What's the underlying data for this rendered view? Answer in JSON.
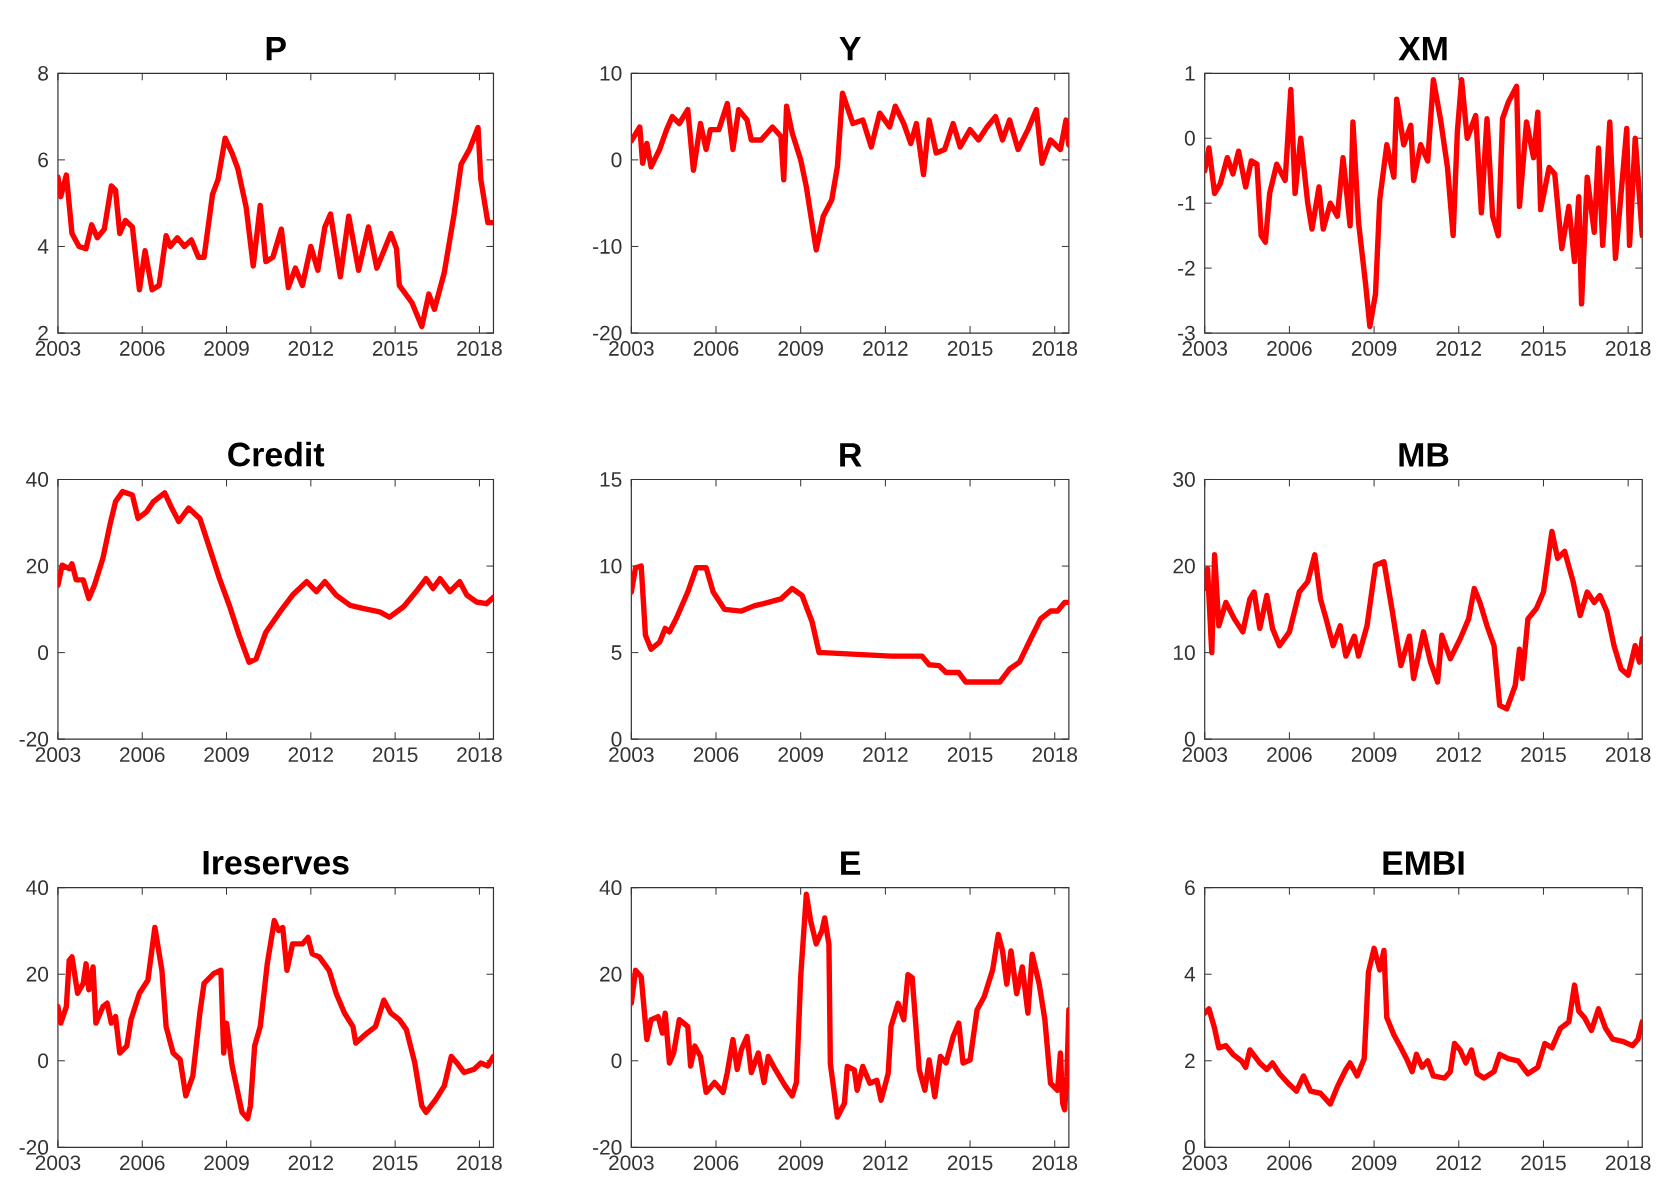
{
  "chart_data": [
    {
      "type": "line",
      "title": "P",
      "color": "#ff0000",
      "xlim": [
        2003,
        2018.5
      ],
      "xticks": [
        2003,
        2006,
        2009,
        2012,
        2015,
        2018
      ],
      "ylim": [
        2,
        8
      ],
      "yticks": [
        2,
        4,
        6,
        8
      ],
      "x": [
        2003.0,
        2003.1,
        2003.3,
        2003.5,
        2003.75,
        2004.0,
        2004.2,
        2004.4,
        2004.65,
        2004.9,
        2005.05,
        2005.2,
        2005.4,
        2005.65,
        2005.9,
        2006.1,
        2006.35,
        2006.6,
        2006.85,
        2007.0,
        2007.25,
        2007.5,
        2007.75,
        2008.0,
        2008.2,
        2008.5,
        2008.7,
        2008.95,
        2009.2,
        2009.4,
        2009.7,
        2009.95,
        2010.2,
        2010.4,
        2010.65,
        2010.95,
        2011.2,
        2011.45,
        2011.7,
        2012.0,
        2012.25,
        2012.5,
        2012.7,
        2013.05,
        2013.35,
        2013.7,
        2014.05,
        2014.35,
        2014.85,
        2015.05,
        2015.15,
        2015.6,
        2015.95,
        2016.2,
        2016.4,
        2016.75,
        2017.1,
        2017.35,
        2017.65,
        2017.95,
        2018.05,
        2018.3,
        2018.5
      ],
      "values": [
        5.6,
        5.15,
        5.65,
        4.3,
        4.0,
        3.95,
        4.5,
        4.2,
        4.4,
        5.4,
        5.3,
        4.3,
        4.6,
        4.45,
        3.0,
        3.9,
        3.0,
        3.1,
        4.25,
        4.0,
        4.2,
        4.0,
        4.15,
        3.75,
        3.75,
        5.2,
        5.55,
        6.5,
        6.15,
        5.8,
        4.9,
        3.55,
        4.95,
        3.65,
        3.75,
        4.4,
        3.05,
        3.5,
        3.1,
        4.0,
        3.45,
        4.45,
        4.75,
        3.3,
        4.7,
        3.45,
        4.45,
        3.5,
        4.3,
        3.95,
        3.1,
        2.7,
        2.15,
        2.9,
        2.55,
        3.4,
        4.75,
        5.9,
        6.25,
        6.75,
        5.55,
        4.55,
        4.55
      ]
    },
    {
      "type": "line",
      "title": "Y",
      "color": "#ff0000",
      "xlim": [
        2003,
        2018.5
      ],
      "xticks": [
        2003,
        2006,
        2009,
        2012,
        2015,
        2018
      ],
      "ylim": [
        -20,
        10
      ],
      "yticks": [
        -20,
        -10,
        0,
        10
      ],
      "x": [
        2003.0,
        2003.3,
        2003.4,
        2003.55,
        2003.7,
        2004.0,
        2004.25,
        2004.45,
        2004.7,
        2005.0,
        2005.2,
        2005.45,
        2005.65,
        2005.8,
        2006.1,
        2006.4,
        2006.6,
        2006.8,
        2007.1,
        2007.25,
        2007.6,
        2008.0,
        2008.3,
        2008.4,
        2008.5,
        2008.7,
        2009.0,
        2009.2,
        2009.4,
        2009.55,
        2009.8,
        2010.1,
        2010.3,
        2010.48,
        2010.85,
        2011.2,
        2011.5,
        2011.8,
        2012.15,
        2012.35,
        2012.65,
        2012.9,
        2013.1,
        2013.35,
        2013.55,
        2013.8,
        2014.1,
        2014.4,
        2014.65,
        2015.0,
        2015.3,
        2015.6,
        2015.9,
        2016.15,
        2016.4,
        2016.7,
        2017.05,
        2017.35,
        2017.55,
        2017.85,
        2018.2,
        2018.4,
        2018.5
      ],
      "values": [
        2.2,
        3.8,
        -0.4,
        1.9,
        -0.8,
        1.2,
        3.5,
        5.0,
        4.2,
        5.8,
        -1.2,
        4.2,
        1.2,
        3.5,
        3.5,
        6.5,
        1.2,
        5.8,
        4.6,
        2.3,
        2.3,
        3.8,
        2.7,
        -2.3,
        6.2,
        3.1,
        0,
        -3.1,
        -7.3,
        -10.4,
        -6.5,
        -4.6,
        -0.8,
        7.7,
        4.2,
        4.6,
        1.5,
        5.4,
        3.8,
        6.2,
        4.2,
        1.9,
        4.2,
        -1.7,
        4.6,
        0.8,
        1.2,
        4.2,
        1.5,
        3.5,
        2.3,
        3.8,
        5.0,
        2.3,
        4.6,
        1.2,
        3.5,
        5.8,
        -0.4,
        2.3,
        1.2,
        4.6,
        1.7
      ]
    },
    {
      "type": "line",
      "title": "XM",
      "color": "#ff0000",
      "xlim": [
        2003,
        2018.5
      ],
      "xticks": [
        2003,
        2006,
        2009,
        2012,
        2015,
        2018
      ],
      "ylim": [
        -3,
        1
      ],
      "yticks": [
        -3,
        -2,
        -1,
        0,
        1
      ],
      "x": [
        2003.0,
        2003.15,
        2003.35,
        2003.55,
        2003.8,
        2004.0,
        2004.2,
        2004.45,
        2004.65,
        2004.85,
        2005.0,
        2005.15,
        2005.3,
        2005.55,
        2005.85,
        2006.05,
        2006.2,
        2006.4,
        2006.65,
        2006.8,
        2007.05,
        2007.2,
        2007.45,
        2007.7,
        2007.9,
        2008.15,
        2008.25,
        2008.45,
        2008.7,
        2008.85,
        2009.05,
        2009.2,
        2009.45,
        2009.7,
        2009.8,
        2010.05,
        2010.3,
        2010.4,
        2010.65,
        2010.9,
        2011.1,
        2011.35,
        2011.6,
        2011.8,
        2011.95,
        2012.1,
        2012.3,
        2012.6,
        2012.8,
        2013.0,
        2013.2,
        2013.4,
        2013.55,
        2013.75,
        2014.05,
        2014.15,
        2014.4,
        2014.65,
        2014.8,
        2014.9,
        2015.2,
        2015.4,
        2015.65,
        2015.9,
        2016.1,
        2016.25,
        2016.35,
        2016.55,
        2016.8,
        2016.95,
        2017.1,
        2017.35,
        2017.55,
        2017.8,
        2017.95,
        2018.05,
        2018.25,
        2018.5
      ],
      "values": [
        -0.5,
        -0.15,
        -0.85,
        -0.7,
        -0.3,
        -0.55,
        -0.2,
        -0.75,
        -0.35,
        -0.4,
        -1.5,
        -1.6,
        -0.85,
        -0.4,
        -0.65,
        0.75,
        -0.85,
        0,
        -1.0,
        -1.4,
        -0.75,
        -1.4,
        -1.0,
        -1.2,
        -0.3,
        -1.35,
        0.25,
        -1.3,
        -2.25,
        -2.9,
        -2.4,
        -0.95,
        -0.1,
        -0.6,
        0.6,
        -0.1,
        0.2,
        -0.65,
        -0.1,
        -0.35,
        0.9,
        0.3,
        -0.45,
        -1.5,
        0.1,
        0.9,
        0,
        0.35,
        -1.15,
        0.3,
        -1.2,
        -1.5,
        0.3,
        0.55,
        0.8,
        -1.05,
        0.25,
        -0.3,
        0.4,
        -1.1,
        -0.45,
        -0.55,
        -1.7,
        -1.05,
        -1.9,
        -0.9,
        -2.55,
        -0.6,
        -1.45,
        -0.15,
        -1.65,
        0.25,
        -1.85,
        -0.6,
        0.15,
        -1.65,
        0,
        -1.5
      ]
    },
    {
      "type": "line",
      "title": "Credit",
      "color": "#ff0000",
      "xlim": [
        2003,
        2018.5
      ],
      "xticks": [
        2003,
        2006,
        2009,
        2012,
        2015,
        2018
      ],
      "ylim": [
        -20,
        40
      ],
      "yticks": [
        -20,
        0,
        20,
        40
      ],
      "x": [
        2003.0,
        2003.15,
        2003.4,
        2003.5,
        2003.65,
        2003.9,
        2004.1,
        2004.3,
        2004.6,
        2004.85,
        2005.05,
        2005.3,
        2005.65,
        2005.85,
        2006.15,
        2006.4,
        2006.8,
        2007.05,
        2007.3,
        2007.65,
        2008.05,
        2008.4,
        2008.75,
        2009.1,
        2009.45,
        2009.8,
        2010.05,
        2010.4,
        2010.9,
        2011.35,
        2011.85,
        2012.2,
        2012.5,
        2012.9,
        2013.4,
        2013.85,
        2014.45,
        2014.8,
        2015.3,
        2015.75,
        2016.1,
        2016.35,
        2016.6,
        2016.95,
        2017.3,
        2017.55,
        2017.9,
        2018.25,
        2018.5
      ],
      "values": [
        15.6,
        20.2,
        19.4,
        20.5,
        16.8,
        16.8,
        12.5,
        15.6,
        21.8,
        29.5,
        34.9,
        37.2,
        36.4,
        31,
        32.5,
        34.9,
        36.9,
        33.4,
        30.3,
        33.4,
        31,
        24.1,
        17.1,
        10.9,
        4,
        -2.2,
        -1.5,
        4.7,
        9.4,
        13.3,
        16.4,
        14.1,
        16.4,
        13.3,
        10.9,
        10.2,
        9.4,
        8.2,
        10.6,
        14.1,
        17.1,
        14.8,
        17.1,
        14.1,
        16.4,
        13.3,
        11.7,
        11.3,
        12.8
      ]
    },
    {
      "type": "line",
      "title": "R",
      "color": "#ff0000",
      "xlim": [
        2003,
        2018.5
      ],
      "xticks": [
        2003,
        2006,
        2009,
        2012,
        2015,
        2018
      ],
      "ylim": [
        0,
        15
      ],
      "yticks": [
        0,
        5,
        10,
        15
      ],
      "x": [
        2003.0,
        2003.15,
        2003.35,
        2003.5,
        2003.7,
        2004.0,
        2004.2,
        2004.35,
        2004.6,
        2005.0,
        2005.3,
        2005.65,
        2005.9,
        2006.3,
        2006.9,
        2007.35,
        2007.85,
        2008.3,
        2008.7,
        2009.05,
        2009.4,
        2009.65,
        2009.8,
        2012.2,
        2013.3,
        2013.55,
        2013.9,
        2014.15,
        2014.6,
        2014.85,
        2016.05,
        2016.4,
        2016.75,
        2017.15,
        2017.5,
        2017.85,
        2018.1,
        2018.35,
        2018.5
      ],
      "values": [
        8.5,
        9.9,
        10.0,
        6.0,
        5.2,
        5.6,
        6.4,
        6.2,
        7.0,
        8.5,
        9.9,
        9.9,
        8.5,
        7.5,
        7.4,
        7.7,
        7.9,
        8.1,
        8.7,
        8.3,
        6.8,
        5.0,
        5.0,
        4.8,
        4.8,
        4.3,
        4.25,
        3.85,
        3.85,
        3.3,
        3.3,
        4.05,
        4.45,
        5.8,
        6.95,
        7.4,
        7.4,
        7.9,
        7.9
      ]
    },
    {
      "type": "line",
      "title": "MB",
      "color": "#ff0000",
      "xlim": [
        2003,
        2018.5
      ],
      "xticks": [
        2003,
        2006,
        2009,
        2012,
        2015,
        2018
      ],
      "ylim": [
        0,
        30
      ],
      "yticks": [
        0,
        10,
        20,
        30
      ],
      "x": [
        2003.0,
        2003.1,
        2003.25,
        2003.35,
        2003.5,
        2003.75,
        2004.05,
        2004.35,
        2004.6,
        2004.75,
        2004.95,
        2005.2,
        2005.4,
        2005.65,
        2006.0,
        2006.35,
        2006.65,
        2006.9,
        2007.1,
        2007.3,
        2007.55,
        2007.8,
        2008.0,
        2008.3,
        2008.45,
        2008.75,
        2009.05,
        2009.35,
        2009.65,
        2009.95,
        2010.25,
        2010.4,
        2010.75,
        2011.0,
        2011.25,
        2011.4,
        2011.7,
        2012.05,
        2012.35,
        2012.55,
        2012.75,
        2013.0,
        2013.25,
        2013.45,
        2013.7,
        2014.0,
        2014.15,
        2014.25,
        2014.45,
        2014.75,
        2015.0,
        2015.3,
        2015.5,
        2015.75,
        2016.05,
        2016.3,
        2016.55,
        2016.8,
        2017.0,
        2017.25,
        2017.5,
        2017.75,
        2018.0,
        2018.25,
        2018.4,
        2018.5
      ],
      "values": [
        17.4,
        19.7,
        10,
        21.3,
        13.1,
        15.8,
        13.9,
        12.4,
        16.2,
        17,
        12.8,
        16.6,
        12.8,
        10.8,
        12.4,
        17,
        18.2,
        21.3,
        16.2,
        13.9,
        10.8,
        13.1,
        9.6,
        11.9,
        9.6,
        13.1,
        20.1,
        20.5,
        14.7,
        8.5,
        11.9,
        7,
        12.4,
        8.9,
        6.6,
        12,
        9.3,
        11.6,
        13.9,
        17.4,
        15.8,
        13.1,
        10.8,
        3.9,
        3.5,
        6.2,
        10.4,
        7,
        13.9,
        15.1,
        17,
        24,
        20.9,
        21.7,
        18.2,
        14.3,
        17,
        15.8,
        16.6,
        14.7,
        10.8,
        8.1,
        7.4,
        10.8,
        8.9,
        11.6
      ]
    },
    {
      "type": "line",
      "title": "Ireserves",
      "color": "#ff0000",
      "xlim": [
        2003,
        2018.5
      ],
      "xticks": [
        2003,
        2006,
        2009,
        2012,
        2015,
        2018
      ],
      "ylim": [
        -20,
        40
      ],
      "yticks": [
        -20,
        0,
        20,
        40
      ],
      "x": [
        2003.0,
        2003.1,
        2003.3,
        2003.4,
        2003.5,
        2003.7,
        2003.9,
        2004.0,
        2004.1,
        2004.25,
        2004.35,
        2004.6,
        2004.75,
        2004.9,
        2005.05,
        2005.2,
        2005.45,
        2005.6,
        2005.9,
        2006.2,
        2006.45,
        2006.7,
        2006.85,
        2007.1,
        2007.35,
        2007.55,
        2007.8,
        2008.05,
        2008.2,
        2008.55,
        2008.8,
        2008.9,
        2009.0,
        2009.2,
        2009.55,
        2009.75,
        2009.85,
        2010.0,
        2010.2,
        2010.45,
        2010.7,
        2010.85,
        2011.0,
        2011.15,
        2011.35,
        2011.7,
        2011.9,
        2012.05,
        2012.3,
        2012.65,
        2012.9,
        2013.2,
        2013.5,
        2013.6,
        2014.0,
        2014.3,
        2014.6,
        2014.85,
        2015.15,
        2015.4,
        2015.7,
        2015.95,
        2016.1,
        2016.45,
        2016.75,
        2017.0,
        2017.2,
        2017.45,
        2017.8,
        2018.05,
        2018.3,
        2018.5
      ],
      "values": [
        12.5,
        8.7,
        12.5,
        23.2,
        24,
        15.6,
        17.9,
        22.4,
        16.4,
        21.7,
        8.7,
        12.5,
        13.3,
        8.7,
        10.2,
        1.8,
        3.4,
        9.5,
        15.6,
        18.6,
        30.8,
        20.9,
        7.9,
        1.8,
        0.3,
        -8.1,
        -3.5,
        11,
        17.9,
        20.2,
        20.9,
        1.8,
        8.7,
        -1.2,
        -11.9,
        -13.4,
        -10.4,
        3.4,
        7.9,
        22.4,
        32.4,
        30.1,
        30.8,
        20.9,
        27,
        27,
        28.5,
        24.7,
        24,
        20.9,
        15.6,
        11,
        7.9,
        4.1,
        6.4,
        7.9,
        14,
        11,
        9.5,
        7.2,
        -0.5,
        -10.4,
        -11.9,
        -8.9,
        -5.8,
        1,
        -0.5,
        -2.7,
        -2,
        -0.5,
        -1.2,
        1
      ]
    },
    {
      "type": "line",
      "title": "E",
      "color": "#ff0000",
      "xlim": [
        2003,
        2018.5
      ],
      "xticks": [
        2003,
        2006,
        2009,
        2012,
        2015,
        2018
      ],
      "ylim": [
        -20,
        40
      ],
      "yticks": [
        -20,
        0,
        20,
        40
      ],
      "x": [
        2003.0,
        2003.15,
        2003.35,
        2003.55,
        2003.7,
        2003.95,
        2004.1,
        2004.2,
        2004.35,
        2004.5,
        2004.7,
        2005.0,
        2005.1,
        2005.25,
        2005.45,
        2005.65,
        2005.95,
        2006.25,
        2006.4,
        2006.6,
        2006.75,
        2006.9,
        2007.1,
        2007.25,
        2007.5,
        2007.7,
        2007.85,
        2008.1,
        2008.45,
        2008.7,
        2008.85,
        2009.0,
        2009.2,
        2009.35,
        2009.55,
        2009.75,
        2009.85,
        2010.0,
        2010.05,
        2010.3,
        2010.55,
        2010.65,
        2010.9,
        2011.0,
        2011.2,
        2011.45,
        2011.7,
        2011.85,
        2012.1,
        2012.2,
        2012.45,
        2012.65,
        2012.8,
        2012.95,
        2013.2,
        2013.4,
        2013.55,
        2013.75,
        2013.95,
        2014.15,
        2014.4,
        2014.6,
        2014.75,
        2015.0,
        2015.25,
        2015.5,
        2015.8,
        2016.0,
        2016.15,
        2016.3,
        2016.45,
        2016.65,
        2016.85,
        2017.05,
        2017.2,
        2017.45,
        2017.65,
        2017.85,
        2018.1,
        2018.2,
        2018.28,
        2018.35,
        2018.43,
        2018.5
      ],
      "values": [
        13.3,
        20.9,
        19.4,
        4.9,
        9.5,
        10.2,
        6.4,
        11,
        -0.5,
        1.8,
        9.5,
        7.9,
        -1.2,
        3.4,
        1,
        -7.3,
        -5,
        -7.3,
        -2.7,
        4.9,
        -2,
        2.6,
        5.6,
        -2.7,
        1.8,
        -5,
        1,
        -2,
        -5.8,
        -8.1,
        -5,
        19.4,
        38.5,
        32.4,
        27,
        30,
        33,
        26.9,
        -0.6,
        -13,
        -9.8,
        -1.3,
        -2.1,
        -6.8,
        -1.3,
        -5.2,
        -4.5,
        -9.1,
        -2.9,
        7.9,
        13.3,
        9.5,
        19.9,
        19.2,
        -2.1,
        -6.8,
        0.2,
        -8.3,
        1,
        -0.5,
        5.6,
        8.7,
        -0.5,
        0.2,
        11.8,
        14.8,
        21,
        29.2,
        25.4,
        17.7,
        25.4,
        15.5,
        21.7,
        11,
        24.6,
        17.7,
        9.5,
        -5.2,
        -6.8,
        1.8,
        -9.8,
        -11.3,
        -3.6,
        11.8
      ]
    },
    {
      "type": "line",
      "title": "EMBI",
      "color": "#ff0000",
      "xlim": [
        2003,
        2018.5
      ],
      "xticks": [
        2003,
        2006,
        2009,
        2012,
        2015,
        2018
      ],
      "ylim": [
        0,
        6
      ],
      "yticks": [
        0,
        2,
        4,
        6
      ],
      "x": [
        2003.0,
        2003.15,
        2003.35,
        2003.5,
        2003.75,
        2004.0,
        2004.3,
        2004.45,
        2004.6,
        2004.95,
        2005.2,
        2005.4,
        2005.65,
        2006.0,
        2006.25,
        2006.5,
        2006.75,
        2007.1,
        2007.45,
        2007.7,
        2008.0,
        2008.15,
        2008.4,
        2008.65,
        2008.8,
        2009.0,
        2009.2,
        2009.35,
        2009.45,
        2009.7,
        2009.95,
        2010.15,
        2010.35,
        2010.5,
        2010.7,
        2010.9,
        2011.1,
        2011.5,
        2011.7,
        2011.85,
        2012.05,
        2012.25,
        2012.45,
        2012.65,
        2012.9,
        2013.25,
        2013.45,
        2013.75,
        2014.1,
        2014.45,
        2014.8,
        2015.05,
        2015.3,
        2015.6,
        2015.9,
        2016.1,
        2016.25,
        2016.45,
        2016.7,
        2016.95,
        2017.2,
        2017.45,
        2017.8,
        2018.15,
        2018.35,
        2018.5
      ],
      "values": [
        3.1,
        3.2,
        2.75,
        2.3,
        2.35,
        2.15,
        2.0,
        1.85,
        2.25,
        1.95,
        1.8,
        1.95,
        1.7,
        1.45,
        1.3,
        1.65,
        1.3,
        1.25,
        1.0,
        1.4,
        1.8,
        1.95,
        1.65,
        2.05,
        4.05,
        4.6,
        4.1,
        4.55,
        3.0,
        2.6,
        2.3,
        2.05,
        1.75,
        2.15,
        1.85,
        2.0,
        1.65,
        1.6,
        1.75,
        2.4,
        2.25,
        1.95,
        2.25,
        1.7,
        1.6,
        1.75,
        2.15,
        2.05,
        2.0,
        1.7,
        1.85,
        2.4,
        2.3,
        2.75,
        2.9,
        3.75,
        3.15,
        3.0,
        2.7,
        3.2,
        2.75,
        2.5,
        2.45,
        2.35,
        2.5,
        2.9
      ]
    }
  ]
}
